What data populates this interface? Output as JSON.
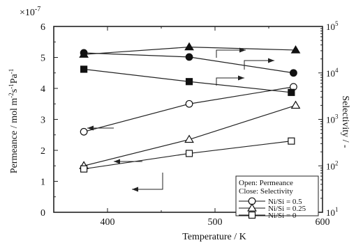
{
  "chart_data": {
    "type": "line",
    "multiplier_label": "×10",
    "multiplier_exp": "-7",
    "ylabel": "Permeance / mol m",
    "ylabel_parts": [
      "Permeance / mol m",
      "-2",
      "s",
      "-1",
      "Pa",
      "-1"
    ],
    "y2label": "Selectivity / -",
    "xlabel": "Temperature / K",
    "xlim": [
      350,
      600
    ],
    "ylim": [
      0,
      6
    ],
    "y2lim_log10": [
      1,
      5
    ],
    "x_ticks": [
      400,
      500,
      600
    ],
    "y_ticks": [
      0,
      1,
      2,
      3,
      4,
      5,
      6
    ],
    "y2_ticks": [
      {
        "base": "10",
        "exp": "1",
        "value": 10
      },
      {
        "base": "10",
        "exp": "2",
        "value": 100
      },
      {
        "base": "10",
        "exp": "3",
        "value": 1000
      },
      {
        "base": "10",
        "exp": "4",
        "value": 10000
      },
      {
        "base": "10",
        "exp": "5",
        "value": 100000
      }
    ],
    "legend": {
      "position": "bottom-right",
      "lines": [
        "Open: Permeance",
        "Close: Selectivity"
      ],
      "entries": [
        {
          "label": "Ni/Si = 0.5",
          "marker": "circle"
        },
        {
          "label": "Ni/Si = 0.25",
          "marker": "triangle"
        },
        {
          "label": "Ni/Si = 0",
          "marker": "square"
        }
      ]
    },
    "series": [
      {
        "marker": "circle",
        "fill": "open",
        "axis": "left",
        "x": [
          378,
          476,
          573
        ],
        "y": [
          2.6,
          3.5,
          4.05
        ]
      },
      {
        "marker": "triangle",
        "fill": "open",
        "axis": "left",
        "x": [
          378,
          476,
          575
        ],
        "y": [
          1.5,
          2.35,
          3.45
        ]
      },
      {
        "marker": "square",
        "fill": "open",
        "axis": "left",
        "x": [
          378,
          476,
          571
        ],
        "y": [
          1.4,
          1.9,
          2.3
        ]
      },
      {
        "marker": "circle",
        "fill": "closed",
        "axis": "right",
        "x": [
          378,
          476,
          573
        ],
        "y": [
          27000,
          22000,
          10000
        ]
      },
      {
        "marker": "triangle",
        "fill": "closed",
        "axis": "right",
        "x": [
          378,
          476,
          575
        ],
        "y": [
          25000,
          36000,
          31000
        ]
      },
      {
        "marker": "square",
        "fill": "closed",
        "axis": "right",
        "x": [
          378,
          476,
          571
        ],
        "y": [
          12000,
          6500,
          3800
        ]
      }
    ]
  }
}
